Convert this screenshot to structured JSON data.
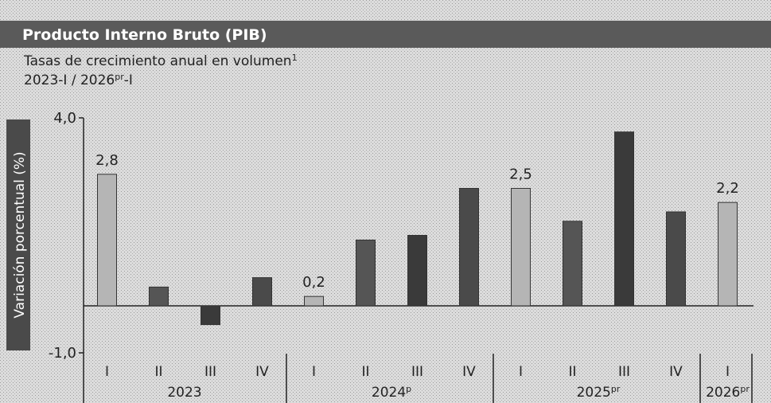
{
  "chart_data": {
    "type": "bar",
    "title": "Producto Interno Bruto (PIB)",
    "subtitle": {
      "text": "Tasas de crecimiento anual en volumen",
      "sup": "1"
    },
    "period": {
      "start": "2023-I / 2026",
      "sup": "pr",
      "end": "-I"
    },
    "y_label": "Variación porcentual (%)",
    "categories": [
      "I",
      "II",
      "III",
      "IV",
      "I",
      "II",
      "III",
      "IV",
      "I",
      "II",
      "III",
      "IV",
      "I"
    ],
    "groups": [
      {
        "label": "2023",
        "sup": "",
        "span": 4
      },
      {
        "label": "2024",
        "sup": "p",
        "span": 4
      },
      {
        "label": "2025",
        "sup": "pr",
        "span": 4
      },
      {
        "label": "2026",
        "sup": "pr",
        "span": 1
      }
    ],
    "values": [
      2.8,
      0.4,
      -0.4,
      0.6,
      0.2,
      1.4,
      1.5,
      2.5,
      2.5,
      1.8,
      3.7,
      2.0,
      2.2
    ],
    "value_labels": [
      "2,8",
      null,
      null,
      null,
      "0,2",
      null,
      null,
      null,
      "2,5",
      null,
      null,
      null,
      "2,2"
    ],
    "colors": [
      "#b5b5b5",
      "#555555",
      "#3a3a3a",
      "#4a4a4a",
      "#b5b5b5",
      "#555555",
      "#3a3a3a",
      "#4a4a4a",
      "#b5b5b5",
      "#555555",
      "#3a3a3a",
      "#4a4a4a",
      "#b5b5b5"
    ],
    "ylim": [
      -1.0,
      4.0
    ],
    "yticks": [
      {
        "value": -1.0,
        "label": "-1,0"
      },
      {
        "value": 4.0,
        "label": "4,0"
      }
    ]
  }
}
